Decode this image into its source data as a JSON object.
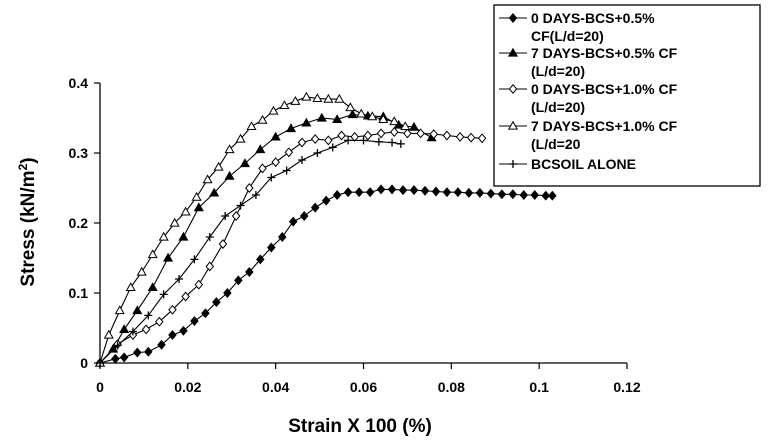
{
  "chart_data": {
    "type": "line",
    "title": "",
    "xlabel": "Strain X 100 (%)",
    "ylabel_main": "Stress (kN/m",
    "ylabel_sup": "2",
    "ylabel_close": ")",
    "xlim": [
      0,
      0.12
    ],
    "ylim": [
      0,
      0.4
    ],
    "x_ticks": [
      0,
      0.02,
      0.04,
      0.06,
      0.08,
      0.1,
      0.12
    ],
    "x_tick_labels": [
      "0",
      "0.02",
      "0.04",
      "0.06",
      "0.08",
      "0.1",
      "0.12"
    ],
    "y_ticks": [
      0,
      0.1,
      0.2,
      0.3,
      0.4
    ],
    "y_tick_labels": [
      "0",
      "0.1",
      "0.2",
      "0.3",
      "0.4"
    ],
    "grid": false,
    "legend_position": "top-right",
    "series": [
      {
        "name": "0 DAYS-BCS+0.5% CF(L/d=20)",
        "legend_lines": [
          "0 DAYS-BCS+0.5%",
          "CF(L/d=20)"
        ],
        "marker": "diamond-filled",
        "x": [
          0,
          0.0035,
          0.0055,
          0.0085,
          0.011,
          0.014,
          0.0165,
          0.019,
          0.0215,
          0.024,
          0.0265,
          0.029,
          0.0315,
          0.034,
          0.0365,
          0.039,
          0.0415,
          0.044,
          0.0465,
          0.049,
          0.0515,
          0.054,
          0.0565,
          0.059,
          0.0615,
          0.064,
          0.0665,
          0.069,
          0.0715,
          0.074,
          0.0765,
          0.079,
          0.0815,
          0.084,
          0.0865,
          0.089,
          0.0915,
          0.094,
          0.0965,
          0.099,
          0.1015,
          0.103
        ],
        "y": [
          0,
          0.006,
          0.008,
          0.015,
          0.016,
          0.026,
          0.04,
          0.046,
          0.06,
          0.071,
          0.087,
          0.1,
          0.118,
          0.13,
          0.148,
          0.165,
          0.18,
          0.202,
          0.21,
          0.222,
          0.232,
          0.24,
          0.244,
          0.244,
          0.244,
          0.248,
          0.248,
          0.247,
          0.247,
          0.246,
          0.245,
          0.244,
          0.244,
          0.243,
          0.243,
          0.242,
          0.241,
          0.241,
          0.24,
          0.24,
          0.239,
          0.239
        ]
      },
      {
        "name": "7 DAYS-BCS+0.5% CF (L/d=20)",
        "legend_lines": [
          "7 DAYS-BCS+0.5% CF",
          "(L/d=20)"
        ],
        "marker": "triangle-filled",
        "x": [
          0,
          0.003,
          0.0055,
          0.0085,
          0.012,
          0.0155,
          0.019,
          0.0225,
          0.026,
          0.0295,
          0.033,
          0.0365,
          0.04,
          0.0435,
          0.047,
          0.0505,
          0.054,
          0.0575,
          0.061,
          0.0645,
          0.068,
          0.0715,
          0.0755
        ],
        "y": [
          0,
          0.02,
          0.048,
          0.075,
          0.108,
          0.15,
          0.18,
          0.222,
          0.243,
          0.267,
          0.285,
          0.305,
          0.323,
          0.335,
          0.343,
          0.35,
          0.348,
          0.355,
          0.353,
          0.352,
          0.34,
          0.337,
          0.322
        ]
      },
      {
        "name": "0 DAYS-BCS+1.0% CF (L/d=20)",
        "legend_lines": [
          "0 DAYS-BCS+1.0% CF",
          "(L/d=20)"
        ],
        "marker": "diamond-open",
        "x": [
          0,
          0.004,
          0.0075,
          0.0105,
          0.0135,
          0.0165,
          0.0195,
          0.0225,
          0.025,
          0.028,
          0.031,
          0.034,
          0.037,
          0.04,
          0.043,
          0.046,
          0.049,
          0.052,
          0.055,
          0.058,
          0.061,
          0.064,
          0.067,
          0.07,
          0.073,
          0.076,
          0.079,
          0.082,
          0.0845,
          0.087
        ],
        "y": [
          0,
          0.027,
          0.04,
          0.048,
          0.059,
          0.076,
          0.095,
          0.112,
          0.138,
          0.17,
          0.21,
          0.25,
          0.278,
          0.287,
          0.301,
          0.315,
          0.32,
          0.318,
          0.325,
          0.323,
          0.325,
          0.328,
          0.33,
          0.328,
          0.328,
          0.327,
          0.325,
          0.323,
          0.322,
          0.321
        ]
      },
      {
        "name": "7 DAYS-BCS+1.0% CF (L/d=20",
        "legend_lines": [
          "7 DAYS-BCS+1.0% CF",
          "(L/d=20"
        ],
        "marker": "triangle-open",
        "x": [
          0,
          0.002,
          0.0045,
          0.007,
          0.0095,
          0.012,
          0.0145,
          0.017,
          0.0195,
          0.022,
          0.0245,
          0.027,
          0.0295,
          0.032,
          0.0345,
          0.037,
          0.0395,
          0.042,
          0.0445,
          0.047,
          0.0495,
          0.052,
          0.0545,
          0.057,
          0.0595,
          0.062,
          0.0645,
          0.067,
          0.0695
        ],
        "y": [
          0,
          0.04,
          0.075,
          0.108,
          0.13,
          0.155,
          0.18,
          0.2,
          0.216,
          0.237,
          0.262,
          0.28,
          0.305,
          0.32,
          0.338,
          0.347,
          0.36,
          0.368,
          0.374,
          0.38,
          0.378,
          0.377,
          0.377,
          0.365,
          0.356,
          0.352,
          0.348,
          0.345,
          0.338
        ]
      },
      {
        "name": "BCSOIL ALONE",
        "legend_lines": [
          "BCSOIL ALONE"
        ],
        "marker": "plus",
        "x": [
          0,
          0.004,
          0.0075,
          0.011,
          0.0145,
          0.018,
          0.0215,
          0.025,
          0.0285,
          0.032,
          0.0355,
          0.039,
          0.0425,
          0.046,
          0.0495,
          0.053,
          0.0565,
          0.06,
          0.0635,
          0.0665,
          0.0685
        ],
        "y": [
          0,
          0.025,
          0.045,
          0.068,
          0.098,
          0.12,
          0.148,
          0.18,
          0.21,
          0.225,
          0.24,
          0.265,
          0.275,
          0.29,
          0.3,
          0.308,
          0.318,
          0.318,
          0.316,
          0.315,
          0.313
        ]
      }
    ]
  }
}
